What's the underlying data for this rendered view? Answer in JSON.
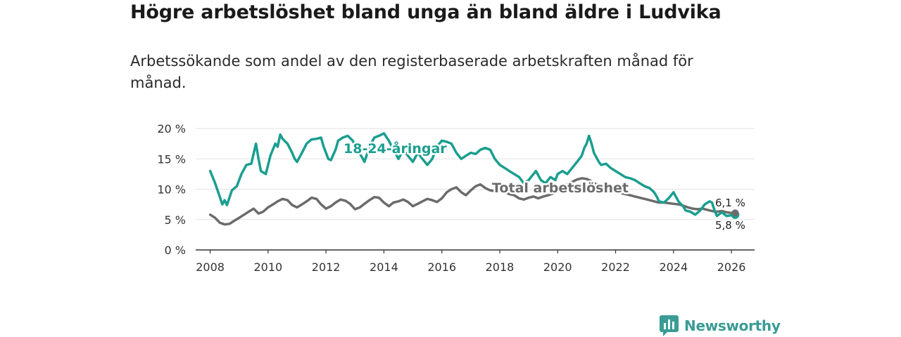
{
  "title": "Högre arbetslöshet bland unga än bland äldre i Ludvika",
  "subtitle": "Arbetssökande som andel av den registerbaserade arbetskraften månad för månad.",
  "brand": {
    "name": "Newsworthy",
    "icon": "newsworthy-logo-icon"
  },
  "colors": {
    "youth": "#1a9e8f",
    "total": "#6b6b6b",
    "grid": "#e2e2e2",
    "axis": "#333333"
  },
  "chart_data": {
    "type": "line",
    "xlabel": "",
    "ylabel": "",
    "xlim": [
      2007.5,
      2026.8
    ],
    "ylim": [
      0,
      20
    ],
    "x_ticks": [
      2008,
      2010,
      2012,
      2014,
      2016,
      2018,
      2020,
      2022,
      2024,
      2026
    ],
    "x_tick_labels": [
      "2008",
      "2010",
      "2012",
      "2014",
      "2016",
      "2018",
      "2020",
      "2022",
      "2024",
      "2026"
    ],
    "y_ticks": [
      0,
      5,
      10,
      15,
      20
    ],
    "y_tick_labels": [
      "0 %",
      "5 %",
      "10 %",
      "15 %",
      "20 %"
    ],
    "grid": true,
    "series": [
      {
        "name": "18-24-åringar",
        "color": "#1a9e8f",
        "label": "18-24-åringar",
        "end_label": "5,8 %",
        "points": [
          [
            2008.0,
            13.0
          ],
          [
            2008.17,
            11.0
          ],
          [
            2008.33,
            8.8
          ],
          [
            2008.42,
            7.5
          ],
          [
            2008.5,
            8.2
          ],
          [
            2008.58,
            7.4
          ],
          [
            2008.75,
            9.8
          ],
          [
            2008.92,
            10.5
          ],
          [
            2009.08,
            12.5
          ],
          [
            2009.25,
            14.0
          ],
          [
            2009.42,
            14.2
          ],
          [
            2009.58,
            17.5
          ],
          [
            2009.67,
            15.0
          ],
          [
            2009.75,
            13.0
          ],
          [
            2009.92,
            12.5
          ],
          [
            2010.08,
            15.5
          ],
          [
            2010.25,
            17.5
          ],
          [
            2010.33,
            17.0
          ],
          [
            2010.42,
            19.0
          ],
          [
            2010.5,
            18.3
          ],
          [
            2010.67,
            17.5
          ],
          [
            2010.83,
            16.0
          ],
          [
            2010.92,
            15.0
          ],
          [
            2011.0,
            14.5
          ],
          [
            2011.17,
            16.0
          ],
          [
            2011.33,
            17.5
          ],
          [
            2011.5,
            18.2
          ],
          [
            2011.67,
            18.3
          ],
          [
            2011.83,
            18.5
          ],
          [
            2011.92,
            17.0
          ],
          [
            2012.08,
            15.0
          ],
          [
            2012.17,
            14.8
          ],
          [
            2012.33,
            16.5
          ],
          [
            2012.42,
            18.0
          ],
          [
            2012.58,
            18.5
          ],
          [
            2012.75,
            18.8
          ],
          [
            2012.92,
            18.0
          ],
          [
            2013.08,
            16.5
          ],
          [
            2013.25,
            15.2
          ],
          [
            2013.33,
            14.5
          ],
          [
            2013.42,
            15.8
          ],
          [
            2013.5,
            17.0
          ],
          [
            2013.67,
            18.5
          ],
          [
            2013.83,
            18.8
          ],
          [
            2014.0,
            19.2
          ],
          [
            2014.17,
            18.0
          ],
          [
            2014.33,
            16.5
          ],
          [
            2014.5,
            15.0
          ],
          [
            2014.67,
            16.5
          ],
          [
            2014.83,
            15.5
          ],
          [
            2015.0,
            14.5
          ],
          [
            2015.17,
            16.0
          ],
          [
            2015.33,
            15.0
          ],
          [
            2015.5,
            14.0
          ],
          [
            2015.67,
            15.0
          ],
          [
            2015.83,
            17.0
          ],
          [
            2016.0,
            18.0
          ],
          [
            2016.17,
            17.8
          ],
          [
            2016.33,
            17.5
          ],
          [
            2016.5,
            16.0
          ],
          [
            2016.67,
            15.0
          ],
          [
            2016.83,
            15.5
          ],
          [
            2017.0,
            16.0
          ],
          [
            2017.17,
            15.8
          ],
          [
            2017.33,
            16.5
          ],
          [
            2017.5,
            16.8
          ],
          [
            2017.67,
            16.5
          ],
          [
            2017.83,
            15.0
          ],
          [
            2018.0,
            14.0
          ],
          [
            2018.17,
            13.5
          ],
          [
            2018.33,
            13.0
          ],
          [
            2018.5,
            12.5
          ],
          [
            2018.67,
            12.0
          ],
          [
            2018.83,
            11.0
          ],
          [
            2019.0,
            11.5
          ],
          [
            2019.08,
            12.0
          ],
          [
            2019.25,
            13.0
          ],
          [
            2019.42,
            11.5
          ],
          [
            2019.58,
            11.0
          ],
          [
            2019.75,
            12.0
          ],
          [
            2019.92,
            11.5
          ],
          [
            2020.0,
            12.5
          ],
          [
            2020.17,
            13.0
          ],
          [
            2020.33,
            12.5
          ],
          [
            2020.5,
            13.5
          ],
          [
            2020.67,
            14.5
          ],
          [
            2020.83,
            15.5
          ],
          [
            2020.92,
            16.8
          ],
          [
            2021.0,
            17.5
          ],
          [
            2021.08,
            18.8
          ],
          [
            2021.17,
            17.5
          ],
          [
            2021.25,
            16.0
          ],
          [
            2021.42,
            14.5
          ],
          [
            2021.5,
            14.0
          ],
          [
            2021.67,
            14.2
          ],
          [
            2021.83,
            13.5
          ],
          [
            2022.0,
            13.0
          ],
          [
            2022.17,
            12.5
          ],
          [
            2022.33,
            12.0
          ],
          [
            2022.5,
            11.8
          ],
          [
            2022.67,
            11.5
          ],
          [
            2022.83,
            11.0
          ],
          [
            2023.0,
            10.5
          ],
          [
            2023.17,
            10.2
          ],
          [
            2023.33,
            9.5
          ],
          [
            2023.42,
            8.8
          ],
          [
            2023.5,
            8.0
          ],
          [
            2023.67,
            7.8
          ],
          [
            2023.83,
            8.5
          ],
          [
            2024.0,
            9.5
          ],
          [
            2024.08,
            8.8
          ],
          [
            2024.17,
            8.0
          ],
          [
            2024.33,
            7.2
          ],
          [
            2024.42,
            6.5
          ],
          [
            2024.58,
            6.3
          ],
          [
            2024.75,
            5.8
          ],
          [
            2024.92,
            6.5
          ],
          [
            2025.08,
            7.5
          ],
          [
            2025.25,
            8.0
          ],
          [
            2025.33,
            7.8
          ],
          [
            2025.42,
            6.5
          ],
          [
            2025.5,
            5.6
          ],
          [
            2025.67,
            6.2
          ],
          [
            2025.83,
            5.6
          ],
          [
            2026.0,
            5.7
          ],
          [
            2026.13,
            5.8
          ]
        ]
      },
      {
        "name": "Total arbetslöshet",
        "color": "#6b6b6b",
        "label": "Total arbetslöshet",
        "end_label": "6,1 %",
        "points": [
          [
            2008.0,
            5.8
          ],
          [
            2008.17,
            5.3
          ],
          [
            2008.33,
            4.5
          ],
          [
            2008.5,
            4.2
          ],
          [
            2008.67,
            4.3
          ],
          [
            2008.83,
            4.8
          ],
          [
            2009.0,
            5.3
          ],
          [
            2009.17,
            5.8
          ],
          [
            2009.33,
            6.3
          ],
          [
            2009.5,
            6.8
          ],
          [
            2009.67,
            6.0
          ],
          [
            2009.83,
            6.3
          ],
          [
            2010.0,
            7.0
          ],
          [
            2010.17,
            7.5
          ],
          [
            2010.33,
            8.0
          ],
          [
            2010.5,
            8.4
          ],
          [
            2010.67,
            8.2
          ],
          [
            2010.83,
            7.4
          ],
          [
            2011.0,
            7.0
          ],
          [
            2011.17,
            7.5
          ],
          [
            2011.33,
            8.0
          ],
          [
            2011.5,
            8.6
          ],
          [
            2011.67,
            8.4
          ],
          [
            2011.83,
            7.5
          ],
          [
            2012.0,
            6.8
          ],
          [
            2012.17,
            7.2
          ],
          [
            2012.33,
            7.8
          ],
          [
            2012.5,
            8.3
          ],
          [
            2012.67,
            8.1
          ],
          [
            2012.83,
            7.6
          ],
          [
            2013.0,
            6.7
          ],
          [
            2013.17,
            7.0
          ],
          [
            2013.33,
            7.6
          ],
          [
            2013.5,
            8.2
          ],
          [
            2013.67,
            8.7
          ],
          [
            2013.83,
            8.6
          ],
          [
            2014.0,
            7.8
          ],
          [
            2014.17,
            7.2
          ],
          [
            2014.33,
            7.8
          ],
          [
            2014.5,
            8.0
          ],
          [
            2014.67,
            8.3
          ],
          [
            2014.83,
            7.9
          ],
          [
            2015.0,
            7.2
          ],
          [
            2015.17,
            7.6
          ],
          [
            2015.33,
            8.0
          ],
          [
            2015.5,
            8.4
          ],
          [
            2015.67,
            8.2
          ],
          [
            2015.83,
            7.9
          ],
          [
            2016.0,
            8.5
          ],
          [
            2016.17,
            9.5
          ],
          [
            2016.33,
            10.0
          ],
          [
            2016.5,
            10.3
          ],
          [
            2016.67,
            9.5
          ],
          [
            2016.83,
            9.0
          ],
          [
            2017.0,
            9.8
          ],
          [
            2017.17,
            10.5
          ],
          [
            2017.33,
            10.8
          ],
          [
            2017.5,
            10.2
          ],
          [
            2017.67,
            9.8
          ],
          [
            2017.83,
            9.7
          ],
          [
            2018.0,
            10.0
          ],
          [
            2018.17,
            9.6
          ],
          [
            2018.33,
            9.2
          ],
          [
            2018.5,
            9.0
          ],
          [
            2018.67,
            8.5
          ],
          [
            2018.83,
            8.3
          ],
          [
            2019.0,
            8.6
          ],
          [
            2019.17,
            8.8
          ],
          [
            2019.33,
            8.5
          ],
          [
            2019.5,
            8.8
          ],
          [
            2019.67,
            9.0
          ],
          [
            2019.83,
            9.3
          ],
          [
            2020.0,
            9.6
          ],
          [
            2020.17,
            10.2
          ],
          [
            2020.33,
            10.8
          ],
          [
            2020.5,
            11.2
          ],
          [
            2020.67,
            11.6
          ],
          [
            2020.83,
            11.8
          ],
          [
            2021.0,
            11.7
          ],
          [
            2021.17,
            11.3
          ],
          [
            2021.33,
            10.8
          ],
          [
            2021.5,
            10.4
          ],
          [
            2021.67,
            10.2
          ],
          [
            2021.83,
            10.0
          ],
          [
            2022.0,
            9.8
          ],
          [
            2022.17,
            9.4
          ],
          [
            2022.33,
            9.2
          ],
          [
            2022.5,
            9.0
          ],
          [
            2022.67,
            8.8
          ],
          [
            2022.83,
            8.6
          ],
          [
            2023.0,
            8.4
          ],
          [
            2023.17,
            8.2
          ],
          [
            2023.33,
            8.0
          ],
          [
            2023.5,
            7.8
          ],
          [
            2023.67,
            7.8
          ],
          [
            2023.83,
            7.7
          ],
          [
            2024.0,
            7.6
          ],
          [
            2024.17,
            7.5
          ],
          [
            2024.33,
            7.3
          ],
          [
            2024.5,
            7.0
          ],
          [
            2024.67,
            6.8
          ],
          [
            2024.83,
            6.7
          ],
          [
            2025.0,
            6.8
          ],
          [
            2025.17,
            6.6
          ],
          [
            2025.33,
            6.4
          ],
          [
            2025.5,
            6.3
          ],
          [
            2025.67,
            6.4
          ],
          [
            2025.83,
            6.2
          ],
          [
            2026.0,
            6.1
          ],
          [
            2026.13,
            6.1
          ]
        ]
      }
    ]
  }
}
